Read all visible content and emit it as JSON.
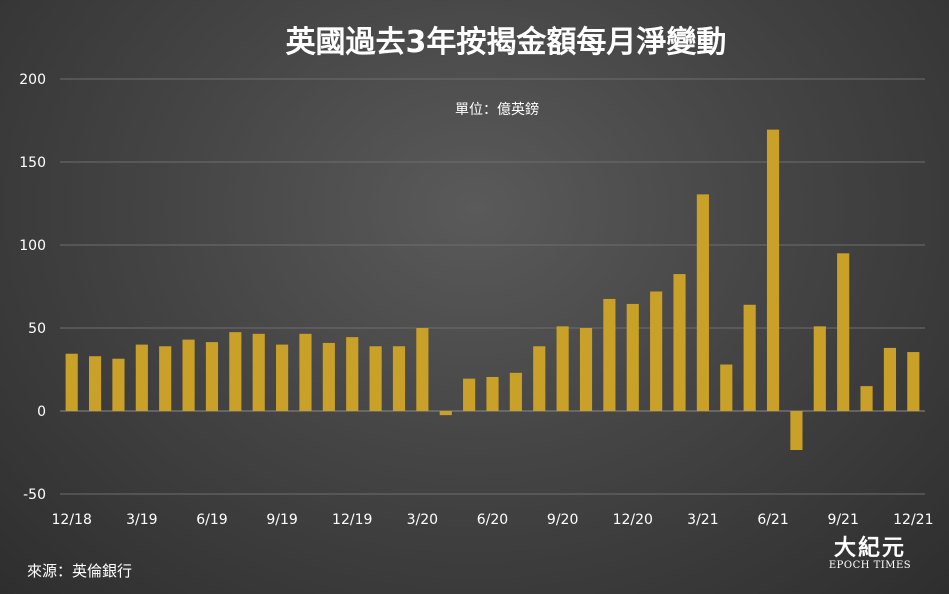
{
  "chart_data": {
    "type": "bar",
    "title": "英國過去3年按揭金額每月淨變動",
    "subtitle": "單位：億英鎊",
    "categories": [
      "12/18",
      "1/19",
      "2/19",
      "3/19",
      "4/19",
      "5/19",
      "6/19",
      "7/19",
      "8/19",
      "9/19",
      "10/19",
      "11/19",
      "12/19",
      "1/20",
      "2/20",
      "3/20",
      "4/20",
      "5/20",
      "6/20",
      "7/20",
      "8/20",
      "9/20",
      "10/20",
      "11/20",
      "12/20",
      "1/21",
      "2/21",
      "3/21",
      "4/21",
      "5/21",
      "6/21",
      "7/21",
      "8/21",
      "9/21",
      "10/21",
      "11/21",
      "12/21"
    ],
    "x_tick_labels": [
      "12/18",
      "3/19",
      "6/19",
      "9/19",
      "12/19",
      "3/20",
      "6/20",
      "9/20",
      "12/20",
      "3/21",
      "6/21",
      "9/21",
      "12/21"
    ],
    "values": [
      34.5,
      33,
      31.5,
      40,
      39,
      43,
      41.5,
      47.5,
      46.5,
      40,
      46.5,
      41,
      44.5,
      39,
      39,
      50,
      -2.5,
      19.5,
      20.5,
      23,
      39,
      51,
      50,
      67.5,
      64.5,
      72,
      82.5,
      130.5,
      28,
      64,
      169.5,
      -23.5,
      51,
      95,
      15,
      38,
      35.5
    ],
    "ylim": [
      -50,
      200
    ],
    "yticks": [
      -50,
      0,
      50,
      100,
      150,
      200
    ],
    "grid": true,
    "colors": {
      "bar": "#c9a028",
      "grid": "#6e6e6e",
      "zero_line": "#8a8a8a"
    }
  },
  "footer": {
    "source": "來源：英倫銀行",
    "logo_cn": "大紀元",
    "logo_en": "EPOCH TIMES"
  }
}
